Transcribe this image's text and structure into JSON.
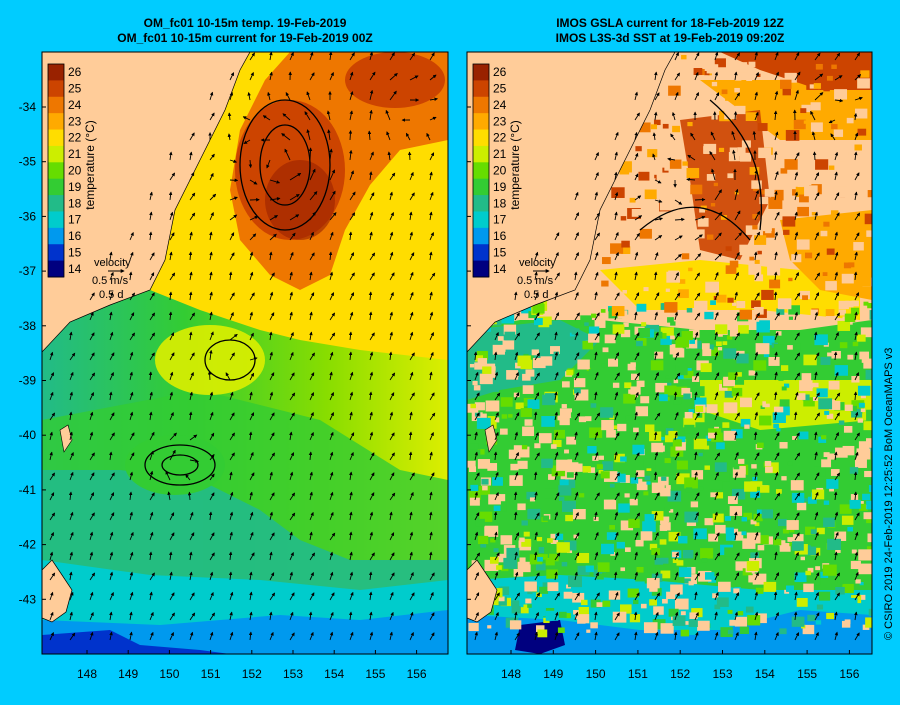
{
  "left_panel": {
    "title_line1": "OM_fc01 10-15m temp. 19-Feb-2019",
    "title_line2": "OM_fc01 10-15m current for 19-Feb-2019 00Z",
    "colorbar_label": "temperature (°C)",
    "colorbar_ticks": [
      "26",
      "25",
      "24",
      "23",
      "22",
      "21",
      "20",
      "19",
      "18",
      "17",
      "16",
      "15",
      "14"
    ],
    "velocity_label": "velocity",
    "velocity_speed": "0.5 m/s",
    "velocity_time": "0.5 d"
  },
  "right_panel": {
    "title_line1": "IMOS GSLA current for 18-Feb-2019 12Z",
    "title_line2": "IMOS L3S-3d SST at 19-Feb-2019 09:20Z",
    "colorbar_label": "temperature (°C)",
    "colorbar_ticks": [
      "26",
      "25",
      "24",
      "23",
      "22",
      "21",
      "20",
      "19",
      "18",
      "17",
      "16",
      "15",
      "14"
    ],
    "velocity_label": "velocity",
    "velocity_speed": "0.5 m/s",
    "velocity_time": "0.5 d"
  },
  "latitude_ticks": [
    "-34",
    "-35",
    "-36",
    "-37",
    "-38",
    "-39",
    "-40",
    "-41",
    "-42",
    "-43"
  ],
  "longitude_ticks": [
    "148",
    "149",
    "150",
    "151",
    "152",
    "153",
    "154",
    "155",
    "156"
  ],
  "credit": "© CSIRO 2019   24-Feb-2019 12:25:52 BoM OceanMAPS v3",
  "colors": {
    "background": "#00ccff",
    "land": "#ffcc99",
    "colormap": [
      "#00007f",
      "#0033cc",
      "#0099ee",
      "#00cccc",
      "#22bb88",
      "#33cc33",
      "#66dd00",
      "#ccee00",
      "#ffdd00",
      "#ffaa00",
      "#ee7700",
      "#cc4400",
      "#992200"
    ]
  }
}
